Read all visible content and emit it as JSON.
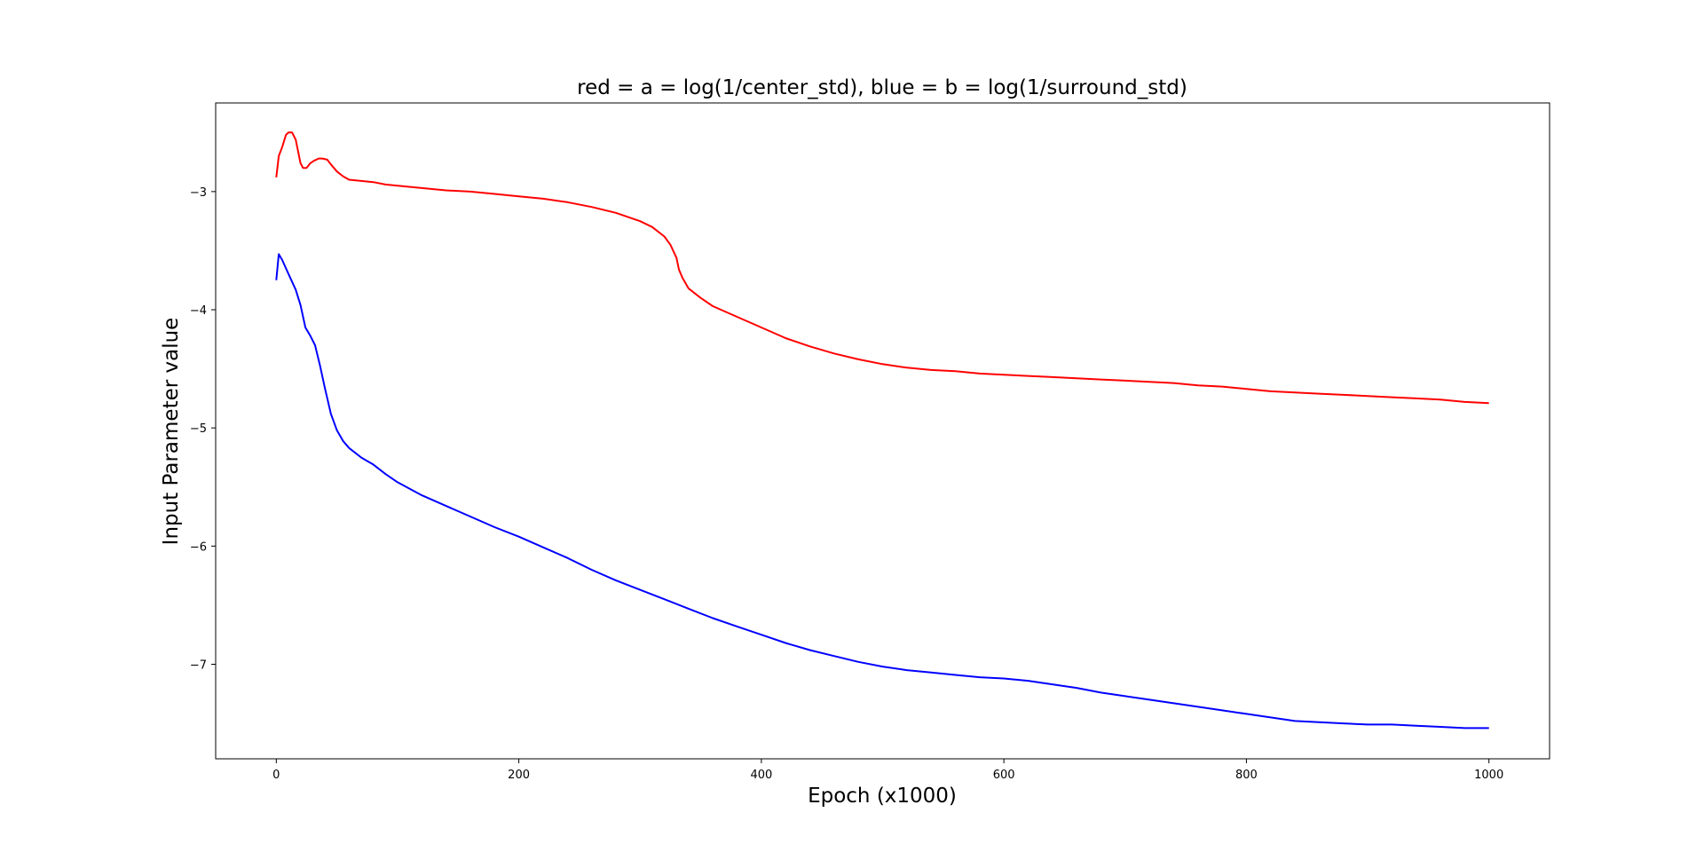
{
  "chart_data": {
    "type": "line",
    "title": "red = a = log(1/center_std), blue = b = log(1/surround_std)",
    "xlabel": "Epoch (x1000)",
    "ylabel": "Input Parameter value",
    "xlim": [
      -50,
      1050
    ],
    "ylim": [
      -7.8,
      -2.25
    ],
    "xticks": [
      0,
      200,
      400,
      600,
      800,
      1000
    ],
    "yticks": [
      -7,
      -6,
      -5,
      -4,
      -3
    ],
    "xtick_labels": [
      "0",
      "200",
      "400",
      "600",
      "800",
      "1000"
    ],
    "ytick_labels": [
      "−7",
      "−6",
      "−5",
      "−4",
      "−3"
    ],
    "grid": false,
    "series": [
      {
        "color": "#ff0000",
        "x": [
          0,
          2,
          5,
          8,
          10,
          13,
          16,
          18,
          20,
          22,
          25,
          28,
          31,
          35,
          38,
          42,
          45,
          50,
          55,
          60,
          70,
          80,
          90,
          100,
          120,
          140,
          160,
          180,
          200,
          220,
          240,
          260,
          280,
          300,
          310,
          320,
          325,
          330,
          332,
          335,
          340,
          350,
          360,
          380,
          400,
          420,
          440,
          460,
          480,
          500,
          520,
          540,
          560,
          580,
          600,
          620,
          640,
          660,
          680,
          700,
          720,
          740,
          760,
          780,
          800,
          820,
          840,
          860,
          880,
          900,
          920,
          940,
          960,
          980,
          1000
        ],
        "y": [
          -2.88,
          -2.7,
          -2.62,
          -2.52,
          -2.5,
          -2.5,
          -2.56,
          -2.66,
          -2.76,
          -2.8,
          -2.8,
          -2.76,
          -2.74,
          -2.72,
          -2.72,
          -2.73,
          -2.77,
          -2.83,
          -2.87,
          -2.9,
          -2.91,
          -2.92,
          -2.94,
          -2.95,
          -2.97,
          -2.99,
          -3.0,
          -3.02,
          -3.04,
          -3.06,
          -3.09,
          -3.13,
          -3.18,
          -3.25,
          -3.3,
          -3.38,
          -3.45,
          -3.56,
          -3.66,
          -3.73,
          -3.82,
          -3.9,
          -3.97,
          -4.06,
          -4.15,
          -4.24,
          -4.31,
          -4.37,
          -4.42,
          -4.46,
          -4.49,
          -4.51,
          -4.52,
          -4.54,
          -4.55,
          -4.56,
          -4.57,
          -4.58,
          -4.59,
          -4.6,
          -4.61,
          -4.62,
          -4.64,
          -4.65,
          -4.67,
          -4.69,
          -4.7,
          -4.71,
          -4.72,
          -4.73,
          -4.74,
          -4.75,
          -4.76,
          -4.78,
          -4.79
        ]
      },
      {
        "color": "#0000ff",
        "x": [
          0,
          2,
          5,
          8,
          12,
          16,
          20,
          24,
          28,
          32,
          36,
          40,
          45,
          50,
          55,
          60,
          65,
          70,
          75,
          80,
          90,
          100,
          120,
          140,
          160,
          180,
          200,
          220,
          240,
          260,
          280,
          300,
          320,
          340,
          360,
          380,
          400,
          420,
          440,
          460,
          480,
          500,
          520,
          540,
          560,
          580,
          600,
          620,
          640,
          660,
          680,
          700,
          720,
          740,
          760,
          780,
          800,
          820,
          840,
          860,
          880,
          900,
          920,
          940,
          960,
          980,
          1000
        ],
        "y": [
          -3.75,
          -3.53,
          -3.58,
          -3.65,
          -3.74,
          -3.83,
          -3.96,
          -4.15,
          -4.22,
          -4.3,
          -4.47,
          -4.66,
          -4.88,
          -5.02,
          -5.11,
          -5.17,
          -5.21,
          -5.25,
          -5.28,
          -5.31,
          -5.39,
          -5.46,
          -5.57,
          -5.66,
          -5.75,
          -5.84,
          -5.92,
          -6.01,
          -6.1,
          -6.2,
          -6.29,
          -6.37,
          -6.45,
          -6.53,
          -6.61,
          -6.68,
          -6.75,
          -6.82,
          -6.88,
          -6.93,
          -6.98,
          -7.02,
          -7.05,
          -7.07,
          -7.09,
          -7.11,
          -7.12,
          -7.14,
          -7.17,
          -7.2,
          -7.24,
          -7.27,
          -7.3,
          -7.33,
          -7.36,
          -7.39,
          -7.42,
          -7.45,
          -7.48,
          -7.49,
          -7.5,
          -7.51,
          -7.51,
          -7.52,
          -7.53,
          -7.54,
          -7.54
        ]
      }
    ]
  }
}
